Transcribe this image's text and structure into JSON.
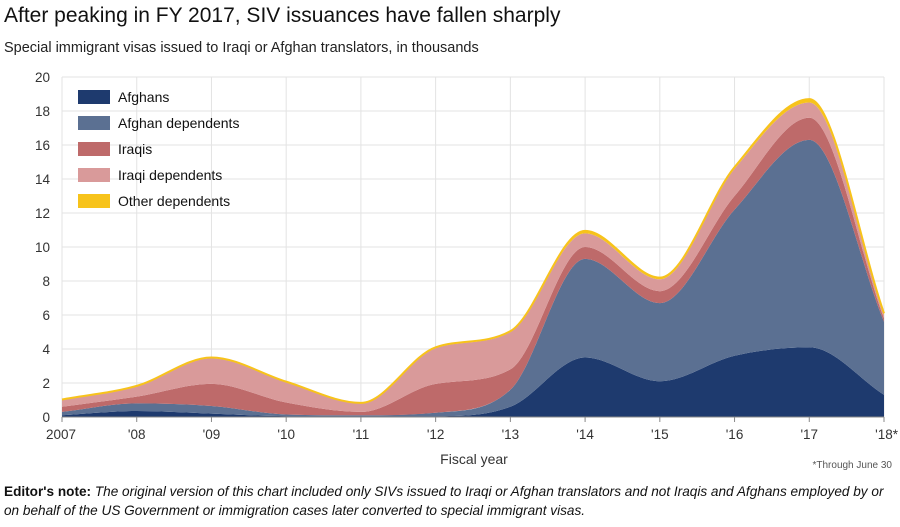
{
  "chart_data": {
    "type": "area",
    "stacked": true,
    "title": "After peaking in FY 2017, SIV issuances have fallen sharply",
    "subtitle": "Special immigrant visas issued to Iraqi or Afghan translators, in thousands",
    "xlabel": "Fiscal year",
    "ylabel": "",
    "ylim": [
      0,
      20
    ],
    "yticks": [
      0,
      2,
      4,
      6,
      8,
      10,
      12,
      14,
      16,
      18,
      20
    ],
    "categories": [
      "2007",
      "'08",
      "'09",
      "'10",
      "'11",
      "'12",
      "'13",
      "'14",
      "'15",
      "'16",
      "'17",
      "'18*"
    ],
    "grid": true,
    "legend_position": "top-left",
    "series": [
      {
        "name": "Afghans",
        "color": "#1e3a6e",
        "values": [
          0.1,
          0.35,
          0.2,
          0.05,
          0.05,
          0.05,
          0.6,
          3.5,
          2.1,
          3.6,
          4.1,
          1.3
        ]
      },
      {
        "name": "Afghan dependents",
        "color": "#5b7092",
        "values": [
          0.2,
          0.45,
          0.45,
          0.1,
          0.05,
          0.2,
          1.0,
          5.8,
          4.6,
          8.6,
          12.2,
          4.3
        ]
      },
      {
        "name": "Iraqis",
        "color": "#be6a6a",
        "values": [
          0.3,
          0.4,
          1.3,
          0.7,
          0.2,
          1.7,
          1.2,
          0.7,
          0.7,
          0.8,
          1.3,
          0.2
        ]
      },
      {
        "name": "Iraqi dependents",
        "color": "#d99a9a",
        "values": [
          0.4,
          0.6,
          1.5,
          1.2,
          0.5,
          2.1,
          2.2,
          0.8,
          0.7,
          1.6,
          0.9,
          0.2
        ]
      },
      {
        "name": "Other dependents",
        "color": "#f7c31b",
        "values": [
          0.03,
          0.03,
          0.05,
          0.03,
          0.03,
          0.05,
          0.05,
          0.15,
          0.1,
          0.1,
          0.2,
          0.1
        ]
      }
    ],
    "annotations": [
      "*Through June 30"
    ]
  },
  "note": {
    "lead": "Editor's note:",
    "body": "The original version of this chart included only SIVs issued to Iraqi or Afghan translators and not Iraqis and Afghans employed by or on behalf of the US Government or immigration cases later converted to special immigrant visas."
  }
}
